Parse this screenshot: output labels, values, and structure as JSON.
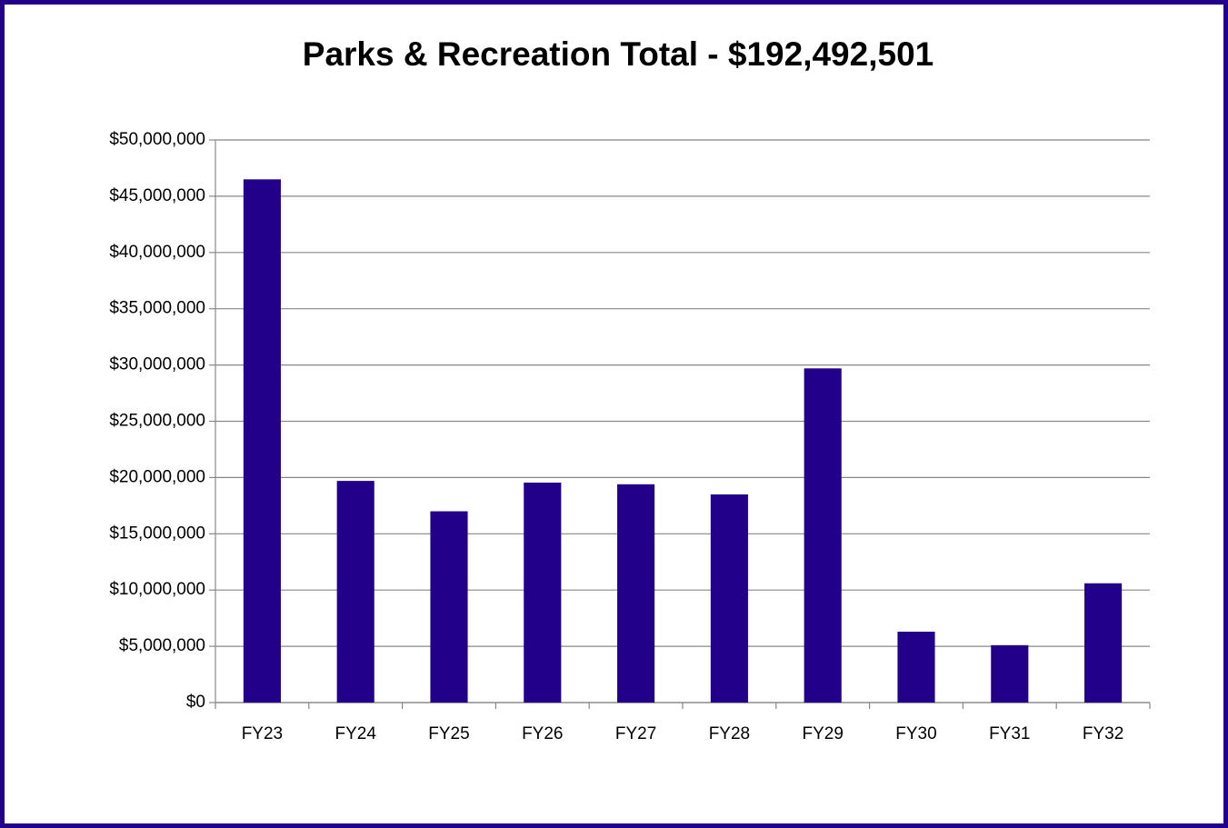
{
  "chart_data": {
    "type": "bar",
    "title": "Parks & Recreation Total - $192,492,501",
    "categories": [
      "FY23",
      "FY24",
      "FY25",
      "FY26",
      "FY27",
      "FY28",
      "FY29",
      "FY30",
      "FY31",
      "FY32"
    ],
    "values": [
      46500000,
      19700000,
      17000000,
      19550000,
      19400000,
      18500000,
      29700000,
      6300000,
      5100000,
      10600000
    ],
    "color": "#22008a",
    "ylim": [
      0,
      50000000
    ],
    "yticks": [
      {
        "value": 0,
        "label": "$0"
      },
      {
        "value": 5000000,
        "label": "$5,000,000"
      },
      {
        "value": 10000000,
        "label": "$10,000,000"
      },
      {
        "value": 15000000,
        "label": "$15,000,000"
      },
      {
        "value": 20000000,
        "label": "$20,000,000"
      },
      {
        "value": 25000000,
        "label": "$25,000,000"
      },
      {
        "value": 30000000,
        "label": "$30,000,000"
      },
      {
        "value": 35000000,
        "label": "$35,000,000"
      },
      {
        "value": 40000000,
        "label": "$40,000,000"
      },
      {
        "value": 45000000,
        "label": "$45,000,000"
      },
      {
        "value": 50000000,
        "label": "$50,000,000"
      }
    ],
    "grid": true
  }
}
